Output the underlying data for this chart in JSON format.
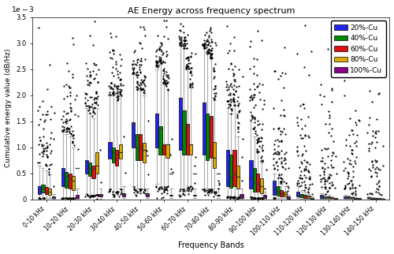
{
  "title": "AE Energy across frequency spectrum",
  "xlabel": "Frequency Bands",
  "ylabel": "Cumulative energy value (dB/Hz)",
  "ylim": [
    0,
    0.0035
  ],
  "freq_bands": [
    "0-10 kHz",
    "10-20 kHz",
    "20-30 kHz",
    "30-40 kHz",
    "40-50 kHz",
    "50-60 kHz",
    "60-70 kHz",
    "70-80 kHz",
    "80-90 kHz",
    "90-100 kHz",
    "100-110 kHz",
    "110-120 kHz",
    "120-130 kHz",
    "130-140 kHz",
    "140-150 kHz"
  ],
  "compositions": [
    "20%-Cu",
    "40%-Cu",
    "60%-Cu",
    "80%-Cu",
    "100%-Cu"
  ],
  "colors": [
    "#2222EE",
    "#008800",
    "#DD1111",
    "#DDAA00",
    "#880088"
  ],
  "n_compositions": 5,
  "n_bands": 15,
  "box_width": 0.14,
  "whisker_color": "#aaaaaa",
  "median_color": "#333333",
  "flier_color": "black",
  "band_medians": [
    [
      0.00018,
      0.0002,
      0.00015,
      0.00014,
      4e-05
    ],
    [
      0.00048,
      0.00045,
      0.0004,
      0.00035,
      0.0006
    ],
    [
      0.0007,
      0.0006,
      0.00058,
      0.00065,
      8e-05
    ],
    [
      0.00095,
      0.00088,
      0.00085,
      0.0009,
      0.0001
    ],
    [
      0.00145,
      0.001,
      0.001,
      0.00095,
      0.0001
    ],
    [
      0.00165,
      0.00135,
      0.00105,
      0.00105,
      0.0005
    ],
    [
      0.00195,
      0.0017,
      0.0014,
      0.00105,
      0.0005
    ],
    [
      0.00185,
      0.00165,
      0.00155,
      0.0008,
      0.0005
    ],
    [
      0.0005,
      0.00045,
      0.00048,
      0.00043,
      5e-05
    ],
    [
      0.0004,
      0.00033,
      0.0003,
      0.00025,
      5e-05
    ],
    [
      0.0002,
      0.00015,
      0.00012,
      0.0001,
      3e-05
    ],
    [
      0.0001,
      8e-05,
      7e-05,
      5e-05,
      2e-05
    ],
    [
      6e-05,
      5e-05,
      4e-05,
      3e-05,
      1e-05
    ],
    [
      5e-05,
      4e-05,
      3e-05,
      2e-05,
      1e-05
    ],
    [
      3e-05,
      2e-05,
      2e-05,
      1e-05,
      1e-05
    ]
  ],
  "band_q1": [
    [
      0.0001,
      0.00013,
      0.0001,
      9e-05,
      2e-05
    ],
    [
      0.00025,
      0.00022,
      0.0002,
      0.00018,
      3e-05
    ],
    [
      0.0005,
      0.00045,
      0.0004,
      0.0005,
      5e-05
    ],
    [
      0.00078,
      0.0007,
      0.00065,
      0.00078,
      6e-05
    ],
    [
      0.001,
      0.00075,
      0.00075,
      0.0007,
      6e-05
    ],
    [
      0.001,
      0.00085,
      0.00085,
      0.0008,
      7e-05
    ],
    [
      0.00095,
      0.00085,
      0.00085,
      0.00085,
      7e-05
    ],
    [
      0.00085,
      0.00075,
      0.0008,
      0.0006,
      7e-05
    ],
    [
      0.00025,
      0.00022,
      0.00025,
      0.0002,
      3e-05
    ],
    [
      0.0002,
      0.00015,
      0.00015,
      0.00012,
      2e-05
    ],
    [
      8e-05,
      7e-05,
      6e-05,
      5e-05,
      1e-05
    ],
    [
      5e-05,
      4e-05,
      3e-05,
      3e-05,
      1e-05
    ],
    [
      3e-05,
      2e-05,
      2e-05,
      2e-05,
      1e-05
    ],
    [
      2e-05,
      2e-05,
      2e-05,
      1e-05,
      1e-05
    ],
    [
      2e-05,
      1e-05,
      1e-05,
      1e-05,
      1e-05
    ]
  ],
  "band_q3": [
    [
      0.00025,
      0.00028,
      0.00023,
      0.0002,
      5e-05
    ],
    [
      0.0006,
      0.00053,
      0.0005,
      0.00045,
      8e-05
    ],
    [
      0.00075,
      0.0007,
      0.00065,
      0.0009,
      0.0001
    ],
    [
      0.0011,
      0.001,
      0.00095,
      0.00105,
      0.00012
    ],
    [
      0.00148,
      0.00125,
      0.00125,
      0.00108,
      0.00012
    ],
    [
      0.00165,
      0.0014,
      0.00105,
      0.00105,
      8e-05
    ],
    [
      0.00195,
      0.0017,
      0.00145,
      0.00105,
      8e-05
    ],
    [
      0.00185,
      0.00165,
      0.0016,
      0.0011,
      8e-05
    ],
    [
      0.00095,
      0.00085,
      0.00095,
      0.00065,
      0.0001
    ],
    [
      0.00075,
      0.0006,
      0.0005,
      0.0004,
      8e-05
    ],
    [
      0.00035,
      0.00025,
      0.00018,
      0.00015,
      5e-05
    ],
    [
      0.00015,
      0.0001,
      9e-05,
      7e-05,
      3e-05
    ],
    [
      8e-05,
      6e-05,
      5e-05,
      4e-05,
      2e-05
    ],
    [
      6e-05,
      5e-05,
      4e-05,
      3e-05,
      2e-05
    ],
    [
      4e-05,
      3e-05,
      2e-05,
      2e-05,
      1e-05
    ]
  ],
  "band_whislo": [
    [
      3e-05,
      3e-05,
      2e-05,
      2e-05,
      1e-05
    ],
    [
      3e-05,
      3e-05,
      3e-05,
      3e-05,
      1e-05
    ],
    [
      0.0001,
      8e-05,
      8e-05,
      0.0001,
      1e-05
    ],
    [
      0.0002,
      0.00015,
      0.00015,
      0.0002,
      2e-05
    ],
    [
      0.00025,
      0.0002,
      0.0002,
      0.0002,
      2e-05
    ],
    [
      0.0003,
      0.00025,
      0.00025,
      0.00025,
      2e-05
    ],
    [
      0.0002,
      0.0002,
      0.00025,
      0.00025,
      2e-05
    ],
    [
      0.0002,
      0.0002,
      0.0002,
      0.00015,
      2e-05
    ],
    [
      5e-05,
      5e-05,
      5e-05,
      5e-05,
      1e-05
    ],
    [
      5e-05,
      3e-05,
      3e-05,
      3e-05,
      1e-05
    ],
    [
      3e-05,
      2e-05,
      2e-05,
      2e-05,
      1e-05
    ],
    [
      2e-05,
      1e-05,
      1e-05,
      1e-05,
      1e-05
    ],
    [
      1e-05,
      1e-05,
      1e-05,
      1e-05,
      1e-05
    ],
    [
      1e-05,
      1e-05,
      1e-05,
      1e-05,
      1e-05
    ],
    [
      1e-05,
      1e-05,
      1e-05,
      1e-05,
      1e-05
    ]
  ],
  "band_whishi": [
    [
      0.00065,
      0.0006,
      0.00055,
      0.00048,
      0.0001
    ],
    [
      0.0013,
      0.00125,
      0.0012,
      0.001,
      0.0002
    ],
    [
      0.00175,
      0.00165,
      0.00155,
      0.00175,
      0.0002
    ],
    [
      0.002,
      0.002,
      0.0019,
      0.002,
      0.00025
    ],
    [
      0.0024,
      0.0021,
      0.0021,
      0.002,
      0.0002
    ],
    [
      0.0025,
      0.0026,
      0.0022,
      0.0021,
      0.0002
    ],
    [
      0.00295,
      0.0029,
      0.0025,
      0.00215,
      0.0002
    ],
    [
      0.0029,
      0.0028,
      0.0027,
      0.0019,
      0.0002
    ],
    [
      0.00175,
      0.00165,
      0.0018,
      0.0012,
      0.0002
    ],
    [
      0.0015,
      0.0012,
      0.0009,
      0.0007,
      0.00015
    ],
    [
      0.0005,
      0.0004,
      0.0003,
      0.00025,
      8e-05
    ],
    [
      0.00025,
      0.00018,
      0.00014,
      0.0001,
      5e-05
    ],
    [
      0.00012,
      0.0001,
      8e-05,
      6e-05,
      3e-05
    ],
    [
      9e-05,
      7e-05,
      6e-05,
      4e-05,
      2e-05
    ],
    [
      5e-05,
      4e-05,
      3e-05,
      2e-05,
      2e-05
    ]
  ],
  "flier_seed": 7,
  "n_fliers_per_box": [
    12,
    15,
    18,
    14,
    3
  ]
}
